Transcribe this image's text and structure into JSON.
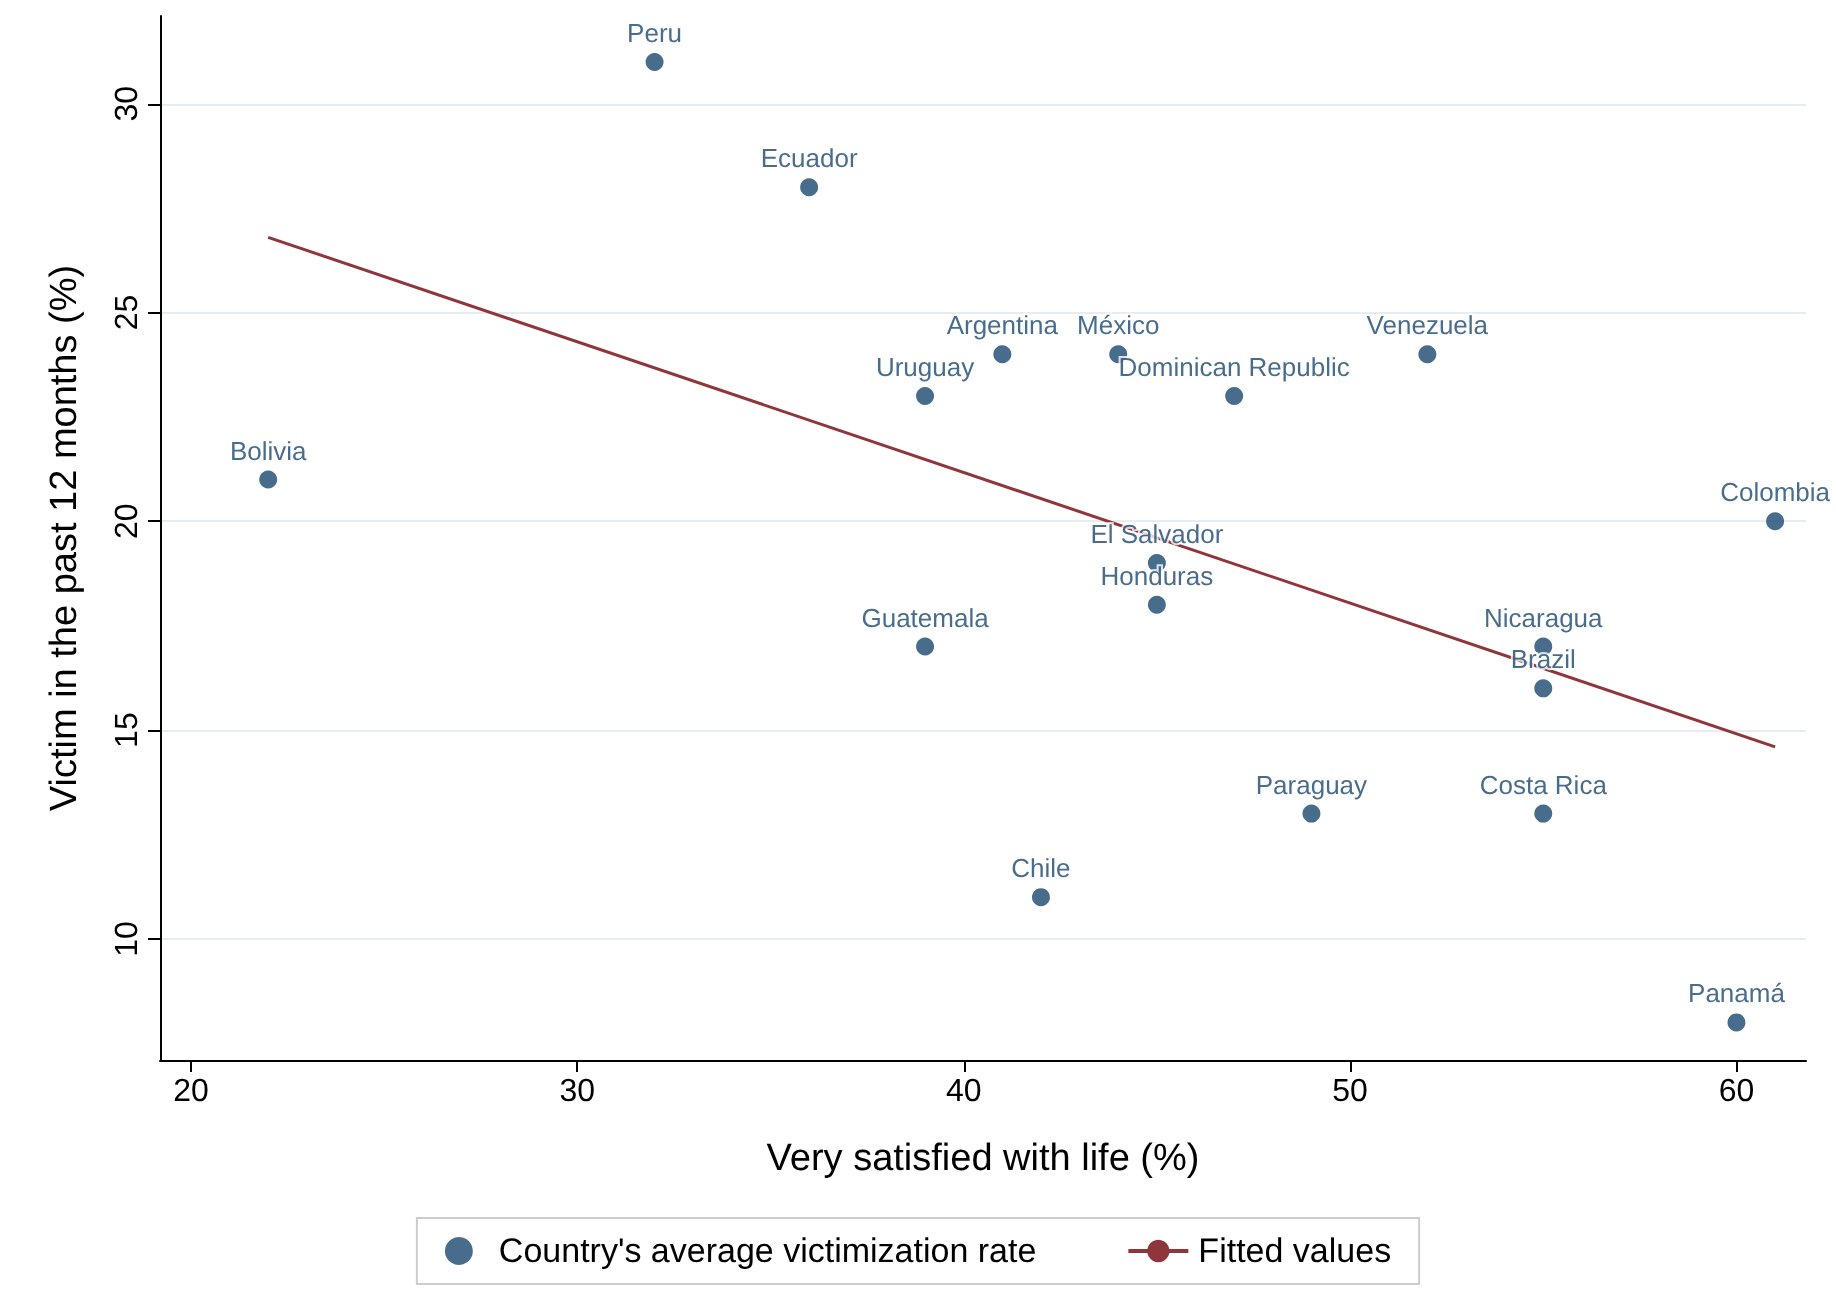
{
  "chart_data": {
    "type": "scatter",
    "xlabel": "Very satisfied with life (%)",
    "ylabel": "Victim in the past 12 months (%)",
    "xlim": [
      19.2,
      61.8
    ],
    "ylim": [
      7.1,
      32.1
    ],
    "xticks": [
      20,
      30,
      40,
      50,
      60
    ],
    "yticks": [
      10,
      15,
      20,
      25,
      30
    ],
    "grid": "y",
    "legend": "bottom",
    "marker": "circle",
    "series": [
      {
        "name": "Country's average victimization rate",
        "color": "#1a476f",
        "x": [
          32,
          36,
          41,
          44,
          39,
          47,
          52,
          22,
          61,
          45,
          45,
          39,
          55,
          55,
          49,
          55,
          42,
          60
        ],
        "values": [
          31,
          28,
          24,
          24,
          23,
          23,
          24,
          21,
          20,
          19,
          18,
          17,
          17,
          16,
          13,
          13,
          11,
          8
        ]
      },
      {
        "name": "Fitted values",
        "color": "#90353b",
        "type": "line",
        "marker": "none",
        "x": [
          22,
          61
        ],
        "values": [
          26.8,
          14.6
        ]
      }
    ],
    "annotations": [
      {
        "text": "Peru",
        "x": 32,
        "y": 31
      },
      {
        "text": "Ecuador",
        "x": 36,
        "y": 28
      },
      {
        "text": "Argentina",
        "x": 41,
        "y": 24
      },
      {
        "text": "México",
        "x": 44,
        "y": 24
      },
      {
        "text": "Uruguay",
        "x": 39,
        "y": 23
      },
      {
        "text": "Dominican Republic",
        "x": 47,
        "y": 23
      },
      {
        "text": "Venezuela",
        "x": 52,
        "y": 24
      },
      {
        "text": "Bolivia",
        "x": 22,
        "y": 21
      },
      {
        "text": "Colombia",
        "x": 61,
        "y": 20
      },
      {
        "text": "El Salvador",
        "x": 45,
        "y": 19
      },
      {
        "text": "Honduras",
        "x": 45,
        "y": 18
      },
      {
        "text": "Guatemala",
        "x": 39,
        "y": 17
      },
      {
        "text": "Nicaragua",
        "x": 55,
        "y": 17
      },
      {
        "text": "Brazil",
        "x": 55,
        "y": 16
      },
      {
        "text": "Paraguay",
        "x": 49,
        "y": 13
      },
      {
        "text": "Costa Rica",
        "x": 55,
        "y": 13
      },
      {
        "text": "Chile",
        "x": 42,
        "y": 11
      },
      {
        "text": "Panamá",
        "x": 60,
        "y": 8
      }
    ]
  }
}
